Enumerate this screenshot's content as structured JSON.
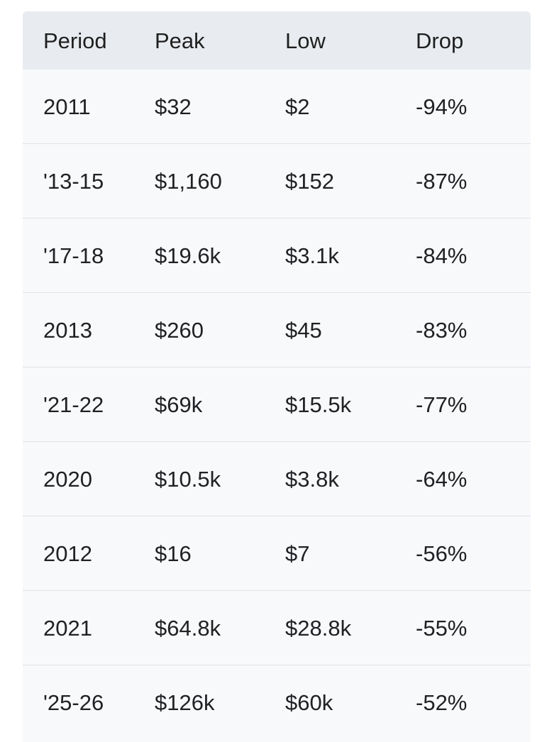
{
  "table": {
    "headers": [
      "Period",
      "Peak",
      "Low",
      "Drop"
    ],
    "rows": [
      {
        "period": "2011",
        "peak": "$32",
        "low": "$2",
        "drop": "-94%"
      },
      {
        "period": "'13-15",
        "peak": "$1,160",
        "low": "$152",
        "drop": "-87%"
      },
      {
        "period": "'17-18",
        "peak": "$19.6k",
        "low": "$3.1k",
        "drop": "-84%"
      },
      {
        "period": "2013",
        "peak": "$260",
        "low": "$45",
        "drop": "-83%"
      },
      {
        "period": "'21-22",
        "peak": "$69k",
        "low": "$15.5k",
        "drop": "-77%"
      },
      {
        "period": "2020",
        "peak": "$10.5k",
        "low": "$3.8k",
        "drop": "-64%"
      },
      {
        "period": "2012",
        "peak": "$16",
        "low": "$7",
        "drop": "-56%"
      },
      {
        "period": "2021",
        "peak": "$64.8k",
        "low": "$28.8k",
        "drop": "-55%"
      },
      {
        "period": "'25-26",
        "peak": "$126k",
        "low": "$60k",
        "drop": "-52%"
      }
    ]
  }
}
